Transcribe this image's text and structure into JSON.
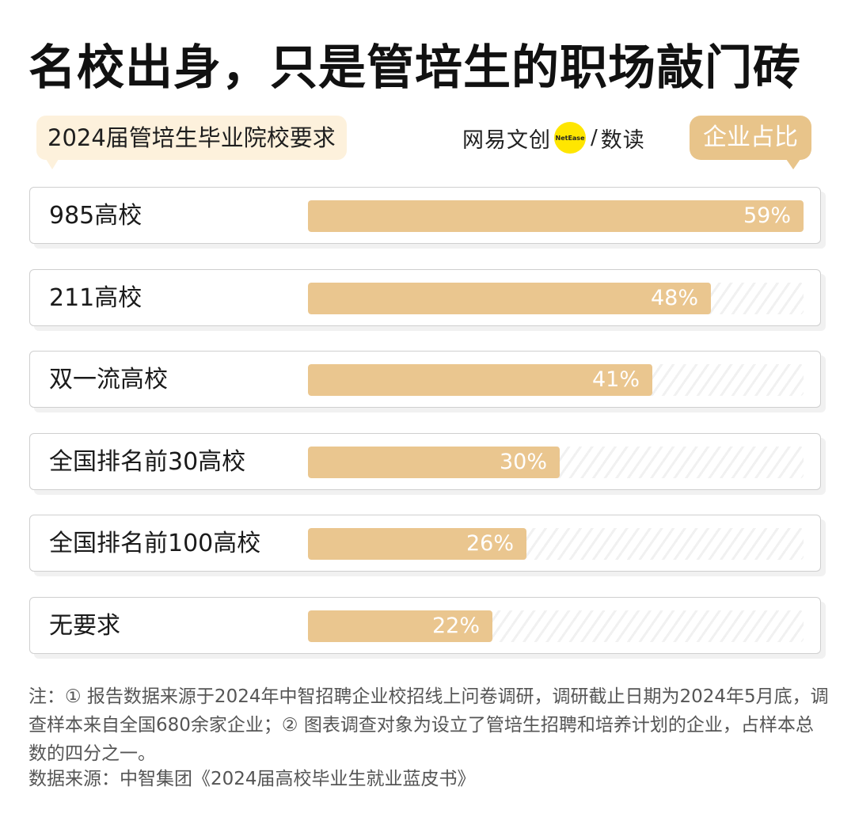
{
  "title": "名校出身，只是管培生的职场敲门砖",
  "subtitle": "2024届管培生毕业院校要求",
  "brand": {
    "name": "网易文创",
    "badge": "NetEase",
    "slash": "/",
    "channel": "数读",
    "badge_color": "#ffe600"
  },
  "legend_label": "企业占比",
  "colors": {
    "bar": "#eac68f",
    "legend": "#e8c48a",
    "label_highlight": "#fdf1dc"
  },
  "chart_data": {
    "type": "bar",
    "orientation": "horizontal",
    "categories": [
      "985高校",
      "211高校",
      "双一流高校",
      "全国排名前30高校",
      "全国排名前100高校",
      "无要求"
    ],
    "values": [
      59,
      48,
      41,
      30,
      26,
      22
    ],
    "value_labels": [
      "59%",
      "48%",
      "41%",
      "30%",
      "26%",
      "22%"
    ],
    "unit": "%",
    "xlim": [
      0,
      59
    ],
    "grid": false
  },
  "note": "注：① 报告数据来源于2024年中智招聘企业校招线上问卷调研，调研截止日期为2024年5月底，调查样本来自全国680余家企业；② 图表调查对象为设立了管培生招聘和培养计划的企业，占样本总数的四分之一。",
  "source": "数据来源：中智集团《2024届高校毕业生就业蓝皮书》"
}
